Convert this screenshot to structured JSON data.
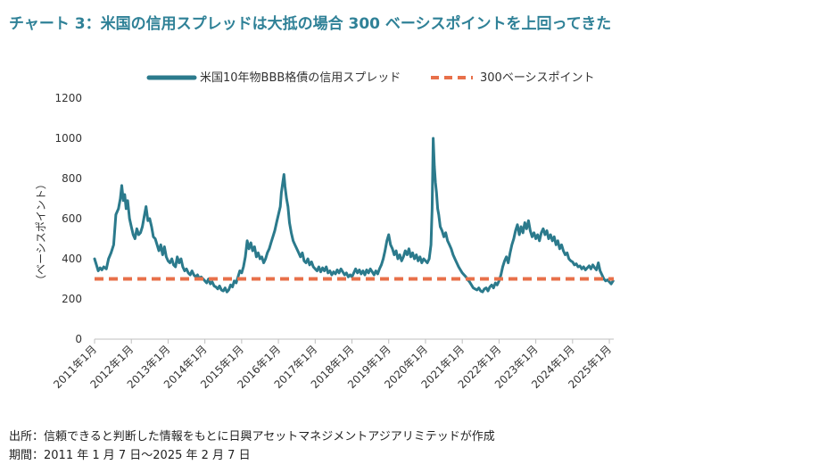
{
  "title": "チャート 3：米国の信用スプレッドは大抵の場合 300 ベーシスポイントを上回ってきた",
  "footer": {
    "source": "出所：信頼できると判断した情報をもとに日興アセットマネジメントアジアリミテッドが作成",
    "period": "期間：2011 年 1 月 7 日～2025 年 2 月 7 日"
  },
  "chart_data": {
    "type": "line",
    "ylabel": "（ベーシスポイント）",
    "ylim": [
      0,
      1200
    ],
    "yticks": [
      "0",
      "200",
      "400",
      "600",
      "800",
      "1000",
      "1200"
    ],
    "xlim": [
      2011.0,
      2025.12
    ],
    "xticks": [
      {
        "label": "2011年1月",
        "value": 2011.0
      },
      {
        "label": "2012年1月",
        "value": 2012.0
      },
      {
        "label": "2013年1月",
        "value": 2013.0
      },
      {
        "label": "2014年1月",
        "value": 2014.0
      },
      {
        "label": "2015年1月",
        "value": 2015.0
      },
      {
        "label": "2016年1月",
        "value": 2016.0
      },
      {
        "label": "2017年1月",
        "value": 2017.0
      },
      {
        "label": "2018年1月",
        "value": 2018.0
      },
      {
        "label": "2019年1月",
        "value": 2019.0
      },
      {
        "label": "2020年1月",
        "value": 2020.0
      },
      {
        "label": "2021年1月",
        "value": 2021.0
      },
      {
        "label": "2022年1月",
        "value": 2022.0
      },
      {
        "label": "2023年1月",
        "value": 2023.0
      },
      {
        "label": "2024年1月",
        "value": 2024.0
      },
      {
        "label": "2025年1月",
        "value": 2025.0
      }
    ],
    "legend_position": "top-center",
    "series": [
      {
        "name": "米国10年物BBB格債の信用スプレッド",
        "color": "#2b7a8c",
        "points": [
          [
            2011.0,
            400
          ],
          [
            2011.05,
            370
          ],
          [
            2011.1,
            340
          ],
          [
            2011.15,
            355
          ],
          [
            2011.2,
            345
          ],
          [
            2011.25,
            360
          ],
          [
            2011.32,
            350
          ],
          [
            2011.38,
            400
          ],
          [
            2011.45,
            430
          ],
          [
            2011.52,
            470
          ],
          [
            2011.58,
            620
          ],
          [
            2011.65,
            650
          ],
          [
            2011.7,
            700
          ],
          [
            2011.74,
            765
          ],
          [
            2011.78,
            690
          ],
          [
            2011.82,
            720
          ],
          [
            2011.86,
            650
          ],
          [
            2011.9,
            690
          ],
          [
            2011.95,
            600
          ],
          [
            2012.0,
            560
          ],
          [
            2012.05,
            520
          ],
          [
            2012.1,
            500
          ],
          [
            2012.15,
            550
          ],
          [
            2012.2,
            520
          ],
          [
            2012.25,
            530
          ],
          [
            2012.3,
            560
          ],
          [
            2012.35,
            610
          ],
          [
            2012.4,
            660
          ],
          [
            2012.45,
            590
          ],
          [
            2012.5,
            600
          ],
          [
            2012.55,
            560
          ],
          [
            2012.6,
            510
          ],
          [
            2012.65,
            500
          ],
          [
            2012.7,
            470
          ],
          [
            2012.75,
            440
          ],
          [
            2012.8,
            470
          ],
          [
            2012.85,
            420
          ],
          [
            2012.9,
            460
          ],
          [
            2012.95,
            410
          ],
          [
            2013.0,
            390
          ],
          [
            2013.05,
            380
          ],
          [
            2013.1,
            400
          ],
          [
            2013.15,
            370
          ],
          [
            2013.2,
            360
          ],
          [
            2013.25,
            410
          ],
          [
            2013.3,
            380
          ],
          [
            2013.35,
            400
          ],
          [
            2013.4,
            360
          ],
          [
            2013.45,
            340
          ],
          [
            2013.5,
            350
          ],
          [
            2013.55,
            330
          ],
          [
            2013.6,
            320
          ],
          [
            2013.65,
            340
          ],
          [
            2013.7,
            320
          ],
          [
            2013.75,
            310
          ],
          [
            2013.8,
            320
          ],
          [
            2013.85,
            300
          ],
          [
            2013.9,
            310
          ],
          [
            2013.95,
            300
          ],
          [
            2014.0,
            290
          ],
          [
            2014.05,
            280
          ],
          [
            2014.1,
            300
          ],
          [
            2014.15,
            275
          ],
          [
            2014.2,
            285
          ],
          [
            2014.25,
            265
          ],
          [
            2014.3,
            260
          ],
          [
            2014.35,
            250
          ],
          [
            2014.4,
            265
          ],
          [
            2014.45,
            245
          ],
          [
            2014.5,
            240
          ],
          [
            2014.55,
            255
          ],
          [
            2014.6,
            235
          ],
          [
            2014.65,
            245
          ],
          [
            2014.7,
            270
          ],
          [
            2014.75,
            260
          ],
          [
            2014.8,
            290
          ],
          [
            2014.85,
            280
          ],
          [
            2014.9,
            310
          ],
          [
            2014.95,
            340
          ],
          [
            2015.0,
            330
          ],
          [
            2015.05,
            360
          ],
          [
            2015.1,
            410
          ],
          [
            2015.15,
            490
          ],
          [
            2015.2,
            450
          ],
          [
            2015.25,
            480
          ],
          [
            2015.3,
            440
          ],
          [
            2015.35,
            460
          ],
          [
            2015.4,
            410
          ],
          [
            2015.45,
            430
          ],
          [
            2015.5,
            400
          ],
          [
            2015.55,
            410
          ],
          [
            2015.6,
            380
          ],
          [
            2015.65,
            400
          ],
          [
            2015.7,
            430
          ],
          [
            2015.75,
            450
          ],
          [
            2015.8,
            480
          ],
          [
            2015.85,
            510
          ],
          [
            2015.9,
            540
          ],
          [
            2015.95,
            580
          ],
          [
            2016.0,
            620
          ],
          [
            2016.05,
            660
          ],
          [
            2016.08,
            730
          ],
          [
            2016.12,
            780
          ],
          [
            2016.15,
            820
          ],
          [
            2016.18,
            760
          ],
          [
            2016.22,
            700
          ],
          [
            2016.26,
            660
          ],
          [
            2016.3,
            580
          ],
          [
            2016.35,
            530
          ],
          [
            2016.4,
            490
          ],
          [
            2016.45,
            470
          ],
          [
            2016.5,
            450
          ],
          [
            2016.55,
            430
          ],
          [
            2016.6,
            410
          ],
          [
            2016.65,
            430
          ],
          [
            2016.7,
            390
          ],
          [
            2016.75,
            380
          ],
          [
            2016.8,
            400
          ],
          [
            2016.85,
            370
          ],
          [
            2016.9,
            385
          ],
          [
            2016.95,
            360
          ],
          [
            2017.0,
            350
          ],
          [
            2017.05,
            340
          ],
          [
            2017.1,
            360
          ],
          [
            2017.15,
            335
          ],
          [
            2017.2,
            355
          ],
          [
            2017.25,
            340
          ],
          [
            2017.3,
            360
          ],
          [
            2017.35,
            330
          ],
          [
            2017.4,
            340
          ],
          [
            2017.45,
            320
          ],
          [
            2017.5,
            335
          ],
          [
            2017.55,
            325
          ],
          [
            2017.6,
            345
          ],
          [
            2017.65,
            330
          ],
          [
            2017.7,
            350
          ],
          [
            2017.75,
            335
          ],
          [
            2017.8,
            320
          ],
          [
            2017.85,
            330
          ],
          [
            2017.9,
            310
          ],
          [
            2017.95,
            320
          ],
          [
            2018.0,
            310
          ],
          [
            2018.05,
            330
          ],
          [
            2018.1,
            350
          ],
          [
            2018.15,
            330
          ],
          [
            2018.2,
            345
          ],
          [
            2018.25,
            325
          ],
          [
            2018.3,
            340
          ],
          [
            2018.35,
            320
          ],
          [
            2018.4,
            345
          ],
          [
            2018.45,
            330
          ],
          [
            2018.5,
            350
          ],
          [
            2018.55,
            335
          ],
          [
            2018.6,
            320
          ],
          [
            2018.65,
            340
          ],
          [
            2018.7,
            325
          ],
          [
            2018.75,
            350
          ],
          [
            2018.8,
            370
          ],
          [
            2018.85,
            400
          ],
          [
            2018.9,
            440
          ],
          [
            2018.95,
            490
          ],
          [
            2019.0,
            520
          ],
          [
            2019.05,
            470
          ],
          [
            2019.1,
            450
          ],
          [
            2019.15,
            420
          ],
          [
            2019.2,
            440
          ],
          [
            2019.25,
            400
          ],
          [
            2019.3,
            420
          ],
          [
            2019.35,
            390
          ],
          [
            2019.4,
            410
          ],
          [
            2019.45,
            440
          ],
          [
            2019.5,
            420
          ],
          [
            2019.55,
            450
          ],
          [
            2019.6,
            410
          ],
          [
            2019.65,
            430
          ],
          [
            2019.7,
            400
          ],
          [
            2019.75,
            420
          ],
          [
            2019.8,
            390
          ],
          [
            2019.85,
            410
          ],
          [
            2019.9,
            380
          ],
          [
            2019.95,
            400
          ],
          [
            2020.0,
            390
          ],
          [
            2020.05,
            380
          ],
          [
            2020.1,
            400
          ],
          [
            2020.15,
            470
          ],
          [
            2020.18,
            650
          ],
          [
            2020.21,
            1000
          ],
          [
            2020.24,
            860
          ],
          [
            2020.27,
            780
          ],
          [
            2020.3,
            730
          ],
          [
            2020.33,
            650
          ],
          [
            2020.36,
            620
          ],
          [
            2020.4,
            560
          ],
          [
            2020.45,
            540
          ],
          [
            2020.5,
            510
          ],
          [
            2020.55,
            530
          ],
          [
            2020.6,
            490
          ],
          [
            2020.65,
            470
          ],
          [
            2020.7,
            450
          ],
          [
            2020.75,
            420
          ],
          [
            2020.8,
            400
          ],
          [
            2020.85,
            380
          ],
          [
            2020.9,
            360
          ],
          [
            2020.95,
            345
          ],
          [
            2021.0,
            330
          ],
          [
            2021.05,
            320
          ],
          [
            2021.1,
            310
          ],
          [
            2021.15,
            295
          ],
          [
            2021.2,
            285
          ],
          [
            2021.25,
            270
          ],
          [
            2021.3,
            255
          ],
          [
            2021.35,
            250
          ],
          [
            2021.4,
            245
          ],
          [
            2021.45,
            255
          ],
          [
            2021.5,
            240
          ],
          [
            2021.55,
            235
          ],
          [
            2021.6,
            250
          ],
          [
            2021.65,
            255
          ],
          [
            2021.7,
            240
          ],
          [
            2021.75,
            260
          ],
          [
            2021.8,
            270
          ],
          [
            2021.85,
            255
          ],
          [
            2021.9,
            280
          ],
          [
            2021.95,
            270
          ],
          [
            2022.0,
            290
          ],
          [
            2022.05,
            320
          ],
          [
            2022.1,
            360
          ],
          [
            2022.15,
            390
          ],
          [
            2022.2,
            410
          ],
          [
            2022.25,
            380
          ],
          [
            2022.3,
            430
          ],
          [
            2022.35,
            470
          ],
          [
            2022.4,
            500
          ],
          [
            2022.45,
            540
          ],
          [
            2022.5,
            570
          ],
          [
            2022.55,
            520
          ],
          [
            2022.6,
            560
          ],
          [
            2022.65,
            530
          ],
          [
            2022.7,
            580
          ],
          [
            2022.75,
            550
          ],
          [
            2022.8,
            590
          ],
          [
            2022.85,
            540
          ],
          [
            2022.9,
            510
          ],
          [
            2022.95,
            530
          ],
          [
            2023.0,
            500
          ],
          [
            2023.05,
            520
          ],
          [
            2023.1,
            490
          ],
          [
            2023.15,
            530
          ],
          [
            2023.2,
            550
          ],
          [
            2023.25,
            520
          ],
          [
            2023.3,
            540
          ],
          [
            2023.35,
            500
          ],
          [
            2023.4,
            520
          ],
          [
            2023.45,
            490
          ],
          [
            2023.5,
            510
          ],
          [
            2023.55,
            470
          ],
          [
            2023.6,
            490
          ],
          [
            2023.65,
            450
          ],
          [
            2023.7,
            470
          ],
          [
            2023.75,
            440
          ],
          [
            2023.8,
            420
          ],
          [
            2023.85,
            430
          ],
          [
            2023.9,
            400
          ],
          [
            2023.95,
            390
          ],
          [
            2024.0,
            385
          ],
          [
            2024.05,
            370
          ],
          [
            2024.1,
            375
          ],
          [
            2024.15,
            360
          ],
          [
            2024.2,
            365
          ],
          [
            2024.25,
            350
          ],
          [
            2024.3,
            360
          ],
          [
            2024.35,
            345
          ],
          [
            2024.4,
            355
          ],
          [
            2024.45,
            365
          ],
          [
            2024.5,
            350
          ],
          [
            2024.55,
            370
          ],
          [
            2024.6,
            355
          ],
          [
            2024.65,
            345
          ],
          [
            2024.7,
            380
          ],
          [
            2024.75,
            340
          ],
          [
            2024.8,
            320
          ],
          [
            2024.85,
            300
          ],
          [
            2024.9,
            290
          ],
          [
            2024.95,
            295
          ],
          [
            2025.0,
            285
          ],
          [
            2025.05,
            275
          ],
          [
            2025.1,
            290
          ]
        ]
      },
      {
        "name": "300ベーシスポイント",
        "color": "#e8704a",
        "dashed": true,
        "points": [
          [
            2011.0,
            300
          ],
          [
            2025.12,
            300
          ]
        ]
      }
    ]
  }
}
